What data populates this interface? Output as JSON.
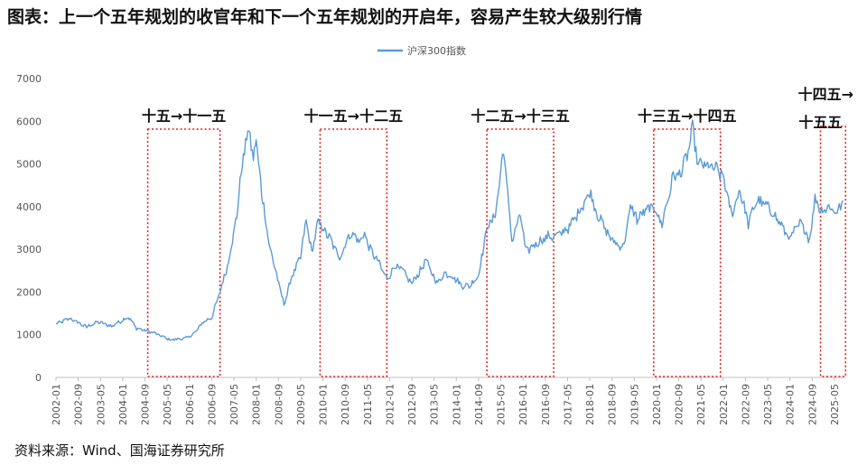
{
  "title": "图表：上一个五年规划的收官年和下一个五年规划的开启年，容易产生较大级别行情",
  "source": "资料来源：Wind、国海证券研究所",
  "colors": {
    "series": "#5B9BD5",
    "box": "#E02020",
    "axis": "#BFBFBF",
    "text": "#111111"
  },
  "chart_data": {
    "type": "line",
    "legend": "top-center",
    "grid": false,
    "ylim": [
      0,
      7000
    ],
    "yticks": [
      0,
      1000,
      2000,
      3000,
      4000,
      5000,
      6000,
      7000
    ],
    "xticks": [
      "2002-01",
      "2002-09",
      "2003-05",
      "2004-01",
      "2004-09",
      "2005-05",
      "2006-01",
      "2006-09",
      "2007-05",
      "2008-01",
      "2008-09",
      "2009-05",
      "2010-01",
      "2010-09",
      "2011-05",
      "2012-01",
      "2012-09",
      "2013-05",
      "2014-01",
      "2014-09",
      "2015-05",
      "2016-01",
      "2016-09",
      "2017-05",
      "2018-01",
      "2018-09",
      "2019-05",
      "2020-01",
      "2020-09",
      "2021-05",
      "2022-01",
      "2022-09",
      "2023-05",
      "2024-01",
      "2024-09",
      "2025-05"
    ],
    "series": [
      {
        "name": "沪深300指数",
        "points": [
          [
            "2002-01",
            1250
          ],
          [
            "2002-06",
            1380
          ],
          [
            "2002-12",
            1180
          ],
          [
            "2003-04",
            1300
          ],
          [
            "2003-09",
            1200
          ],
          [
            "2004-03",
            1420
          ],
          [
            "2004-06",
            1150
          ],
          [
            "2004-12",
            1050
          ],
          [
            "2005-06",
            880
          ],
          [
            "2005-12",
            920
          ],
          [
            "2006-03",
            1050
          ],
          [
            "2006-06",
            1300
          ],
          [
            "2006-09",
            1400
          ],
          [
            "2006-12",
            2000
          ],
          [
            "2007-03",
            2700
          ],
          [
            "2007-06",
            3800
          ],
          [
            "2007-08",
            5000
          ],
          [
            "2007-10",
            5800
          ],
          [
            "2007-12",
            5200
          ],
          [
            "2008-01",
            5600
          ],
          [
            "2008-03",
            4300
          ],
          [
            "2008-06",
            3000
          ],
          [
            "2008-08",
            2500
          ],
          [
            "2008-11",
            1700
          ],
          [
            "2009-02",
            2400
          ],
          [
            "2009-05",
            2800
          ],
          [
            "2009-07",
            3700
          ],
          [
            "2009-09",
            2900
          ],
          [
            "2009-11",
            3600
          ],
          [
            "2010-01",
            3500
          ],
          [
            "2010-04",
            3200
          ],
          [
            "2010-07",
            2800
          ],
          [
            "2010-11",
            3400
          ],
          [
            "2011-02",
            3200
          ],
          [
            "2011-04",
            3350
          ],
          [
            "2011-06",
            3000
          ],
          [
            "2011-09",
            2700
          ],
          [
            "2011-12",
            2300
          ],
          [
            "2012-03",
            2600
          ],
          [
            "2012-05",
            2550
          ],
          [
            "2012-09",
            2200
          ],
          [
            "2012-12",
            2500
          ],
          [
            "2013-02",
            2750
          ],
          [
            "2013-06",
            2200
          ],
          [
            "2013-09",
            2450
          ],
          [
            "2013-12",
            2350
          ],
          [
            "2014-03",
            2150
          ],
          [
            "2014-06",
            2150
          ],
          [
            "2014-09",
            2400
          ],
          [
            "2014-12",
            3500
          ],
          [
            "2015-03",
            3800
          ],
          [
            "2015-06",
            5350
          ],
          [
            "2015-09",
            3200
          ],
          [
            "2015-12",
            3800
          ],
          [
            "2016-02",
            2950
          ],
          [
            "2016-06",
            3150
          ],
          [
            "2016-10",
            3300
          ],
          [
            "2017-01",
            3300
          ],
          [
            "2017-06",
            3550
          ],
          [
            "2017-11",
            4100
          ],
          [
            "2018-01",
            4350
          ],
          [
            "2018-03",
            3950
          ],
          [
            "2018-07",
            3400
          ],
          [
            "2018-10",
            3150
          ],
          [
            "2019-01",
            3050
          ],
          [
            "2019-04",
            4050
          ],
          [
            "2019-06",
            3700
          ],
          [
            "2019-09",
            3900
          ],
          [
            "2019-12",
            4000
          ],
          [
            "2020-03",
            3600
          ],
          [
            "2020-07",
            4700
          ],
          [
            "2020-10",
            4800
          ],
          [
            "2020-12",
            5200
          ],
          [
            "2021-02",
            5800
          ],
          [
            "2021-04",
            5000
          ],
          [
            "2021-07",
            4950
          ],
          [
            "2021-10",
            4900
          ],
          [
            "2022-01",
            4700
          ],
          [
            "2022-04",
            3800
          ],
          [
            "2022-07",
            4400
          ],
          [
            "2022-10",
            3600
          ],
          [
            "2023-01",
            4150
          ],
          [
            "2023-04",
            4050
          ],
          [
            "2023-07",
            3850
          ],
          [
            "2023-10",
            3550
          ],
          [
            "2024-01",
            3250
          ],
          [
            "2024-05",
            3650
          ],
          [
            "2024-08",
            3200
          ],
          [
            "2024-10",
            4200
          ],
          [
            "2024-12",
            3900
          ],
          [
            "2025-03",
            4000
          ],
          [
            "2025-06",
            3850
          ],
          [
            "2025-08",
            4150
          ]
        ]
      }
    ],
    "annotations": [
      {
        "label": "十五→十一五",
        "start": "2004-10",
        "end": "2006-12"
      },
      {
        "label": "十一五→十二五",
        "start": "2009-12",
        "end": "2011-12"
      },
      {
        "label": "十二五→十三五",
        "start": "2014-12",
        "end": "2016-12"
      },
      {
        "label": "十三五→十四五",
        "start": "2019-12",
        "end": "2021-12"
      },
      {
        "label": "十四五→",
        "label2": "十五五",
        "start": "2024-12",
        "end": "2025-09"
      }
    ]
  }
}
